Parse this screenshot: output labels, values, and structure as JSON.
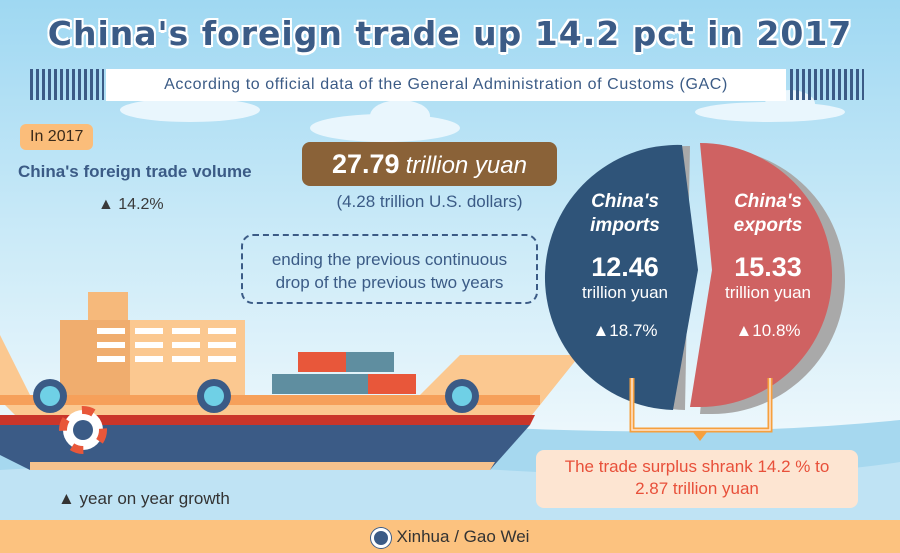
{
  "title": "China's foreign trade up 14.2 pct in 2017",
  "subtitle": "According to official data of the General Administration of Customs (GAC)",
  "year_badge": "In 2017",
  "volume": {
    "label": "China's foreign trade volume",
    "growth": "▲ 14.2%",
    "value": "27.79",
    "unit": "trillion yuan",
    "usd": "(4.28 trillion U.S. dollars)",
    "note_line1": "ending the previous continuous",
    "note_line2": "drop of the previous two years"
  },
  "imports": {
    "title1": "China's",
    "title2": "imports",
    "value": "12.46",
    "unit": "trillion yuan",
    "growth": "▲18.7%",
    "color": "#2f5479"
  },
  "exports": {
    "title1": "China's",
    "title2": "exports",
    "value": "15.33",
    "unit": "trillion yuan",
    "growth": "▲10.8%",
    "color": "#cf6262"
  },
  "surplus": {
    "line1": "The trade surplus shrank 14.2 % to",
    "line2": "2.87 trillion yuan"
  },
  "legend": "▲ year on year growth",
  "credit": "Xinhua / Gao Wei"
}
